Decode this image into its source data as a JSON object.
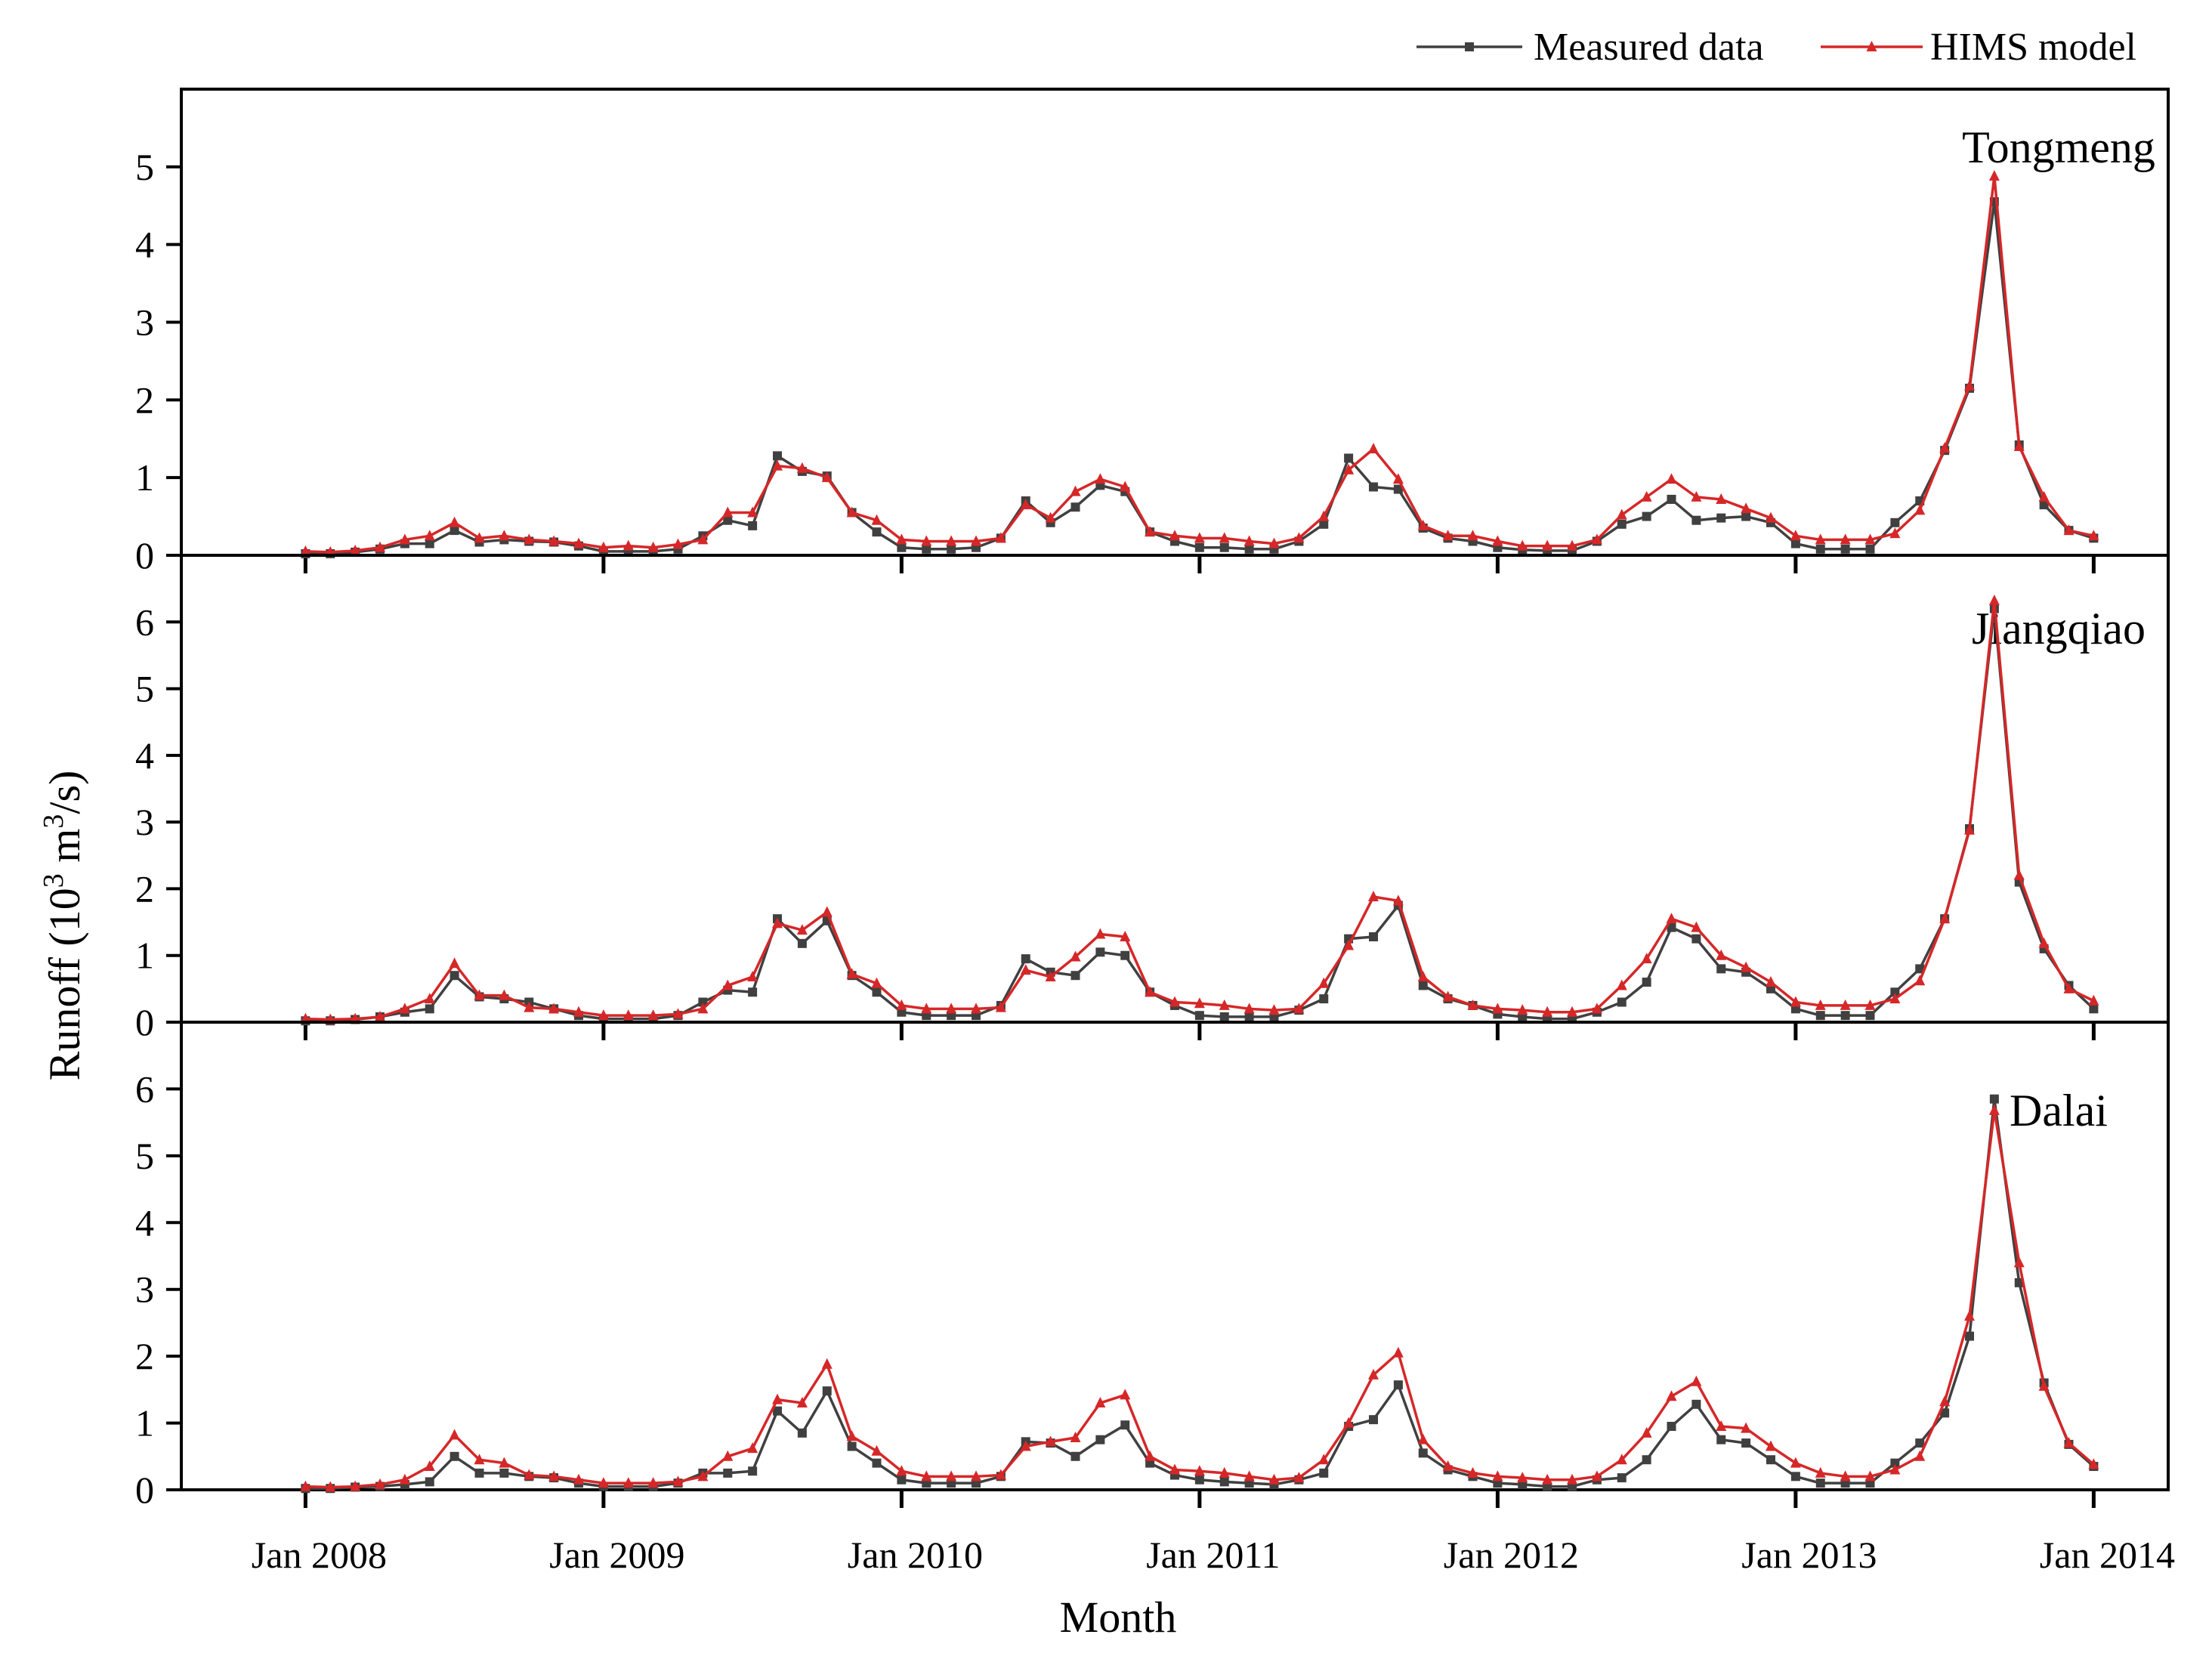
{
  "chart_data": {
    "type": "line",
    "title": "",
    "xlabel": "Month",
    "ylabel": {
      "prefix": "Runoff (10",
      "sup1": "3",
      "mid": " m",
      "sup2": "3",
      "suffix": "/s)"
    },
    "x_ticks": [
      "Jan 2008",
      "Jan 2009",
      "Jan 2010",
      "Jan 2011",
      "Jan 2012",
      "Jan 2013",
      "Jan 2014"
    ],
    "x_range": [
      "2007-08",
      "2014-04"
    ],
    "legend": {
      "placement": "top-right",
      "entries": [
        {
          "name": "Measured data",
          "color": "#404040",
          "marker": "square"
        },
        {
          "name": "HIMS model",
          "color": "#d62728",
          "marker": "triangle"
        }
      ]
    },
    "panels": [
      {
        "station": "Tongmeng",
        "ylim": [
          0,
          6
        ],
        "yticks": [
          0,
          1,
          2,
          3,
          4,
          5
        ],
        "series": [
          {
            "name": "Measured data",
            "color": "#404040",
            "values": [
              0.02,
              0.02,
              0.04,
              0.08,
              0.15,
              0.15,
              0.32,
              0.17,
              0.2,
              0.18,
              0.17,
              0.12,
              0.05,
              0.05,
              0.05,
              0.08,
              0.25,
              0.45,
              0.38,
              1.28,
              1.08,
              1.02,
              0.55,
              0.3,
              0.1,
              0.08,
              0.08,
              0.1,
              0.22,
              0.7,
              0.42,
              0.62,
              0.9,
              0.82,
              0.3,
              0.18,
              0.1,
              0.1,
              0.08,
              0.08,
              0.18,
              0.4,
              1.25,
              0.88,
              0.85,
              0.35,
              0.22,
              0.18,
              0.1,
              0.07,
              0.06,
              0.06,
              0.18,
              0.4,
              0.5,
              0.72,
              0.45,
              0.48,
              0.5,
              0.42,
              0.15,
              0.08,
              0.08,
              0.08,
              0.42,
              0.7,
              1.35,
              2.15,
              4.55,
              1.42,
              0.65,
              0.32,
              0.22
            ]
          },
          {
            "name": "HIMS model",
            "color": "#d62728",
            "values": [
              0.05,
              0.04,
              0.06,
              0.1,
              0.2,
              0.25,
              0.42,
              0.22,
              0.25,
              0.2,
              0.18,
              0.15,
              0.1,
              0.12,
              0.1,
              0.14,
              0.2,
              0.55,
              0.55,
              1.15,
              1.12,
              1.0,
              0.55,
              0.45,
              0.2,
              0.18,
              0.18,
              0.18,
              0.22,
              0.65,
              0.48,
              0.82,
              0.98,
              0.88,
              0.3,
              0.25,
              0.22,
              0.22,
              0.18,
              0.15,
              0.22,
              0.5,
              1.1,
              1.37,
              0.98,
              0.38,
              0.25,
              0.25,
              0.18,
              0.12,
              0.12,
              0.12,
              0.2,
              0.52,
              0.75,
              0.98,
              0.75,
              0.72,
              0.6,
              0.48,
              0.25,
              0.2,
              0.2,
              0.2,
              0.28,
              0.58,
              1.38,
              2.18,
              4.88,
              1.4,
              0.75,
              0.32,
              0.25
            ]
          }
        ]
      },
      {
        "station": "Jiangqiao",
        "ylim": [
          0,
          7
        ],
        "yticks": [
          0,
          1,
          2,
          3,
          4,
          5,
          6
        ],
        "series": [
          {
            "name": "Measured data",
            "color": "#404040",
            "values": [
              0.02,
              0.02,
              0.04,
              0.08,
              0.15,
              0.2,
              0.7,
              0.38,
              0.35,
              0.3,
              0.2,
              0.1,
              0.05,
              0.05,
              0.05,
              0.1,
              0.3,
              0.48,
              0.45,
              1.55,
              1.18,
              1.52,
              0.7,
              0.45,
              0.15,
              0.1,
              0.1,
              0.1,
              0.25,
              0.95,
              0.75,
              0.7,
              1.05,
              1.0,
              0.45,
              0.25,
              0.1,
              0.08,
              0.08,
              0.08,
              0.18,
              0.35,
              1.25,
              1.28,
              1.75,
              0.55,
              0.35,
              0.25,
              0.12,
              0.08,
              0.05,
              0.05,
              0.15,
              0.3,
              0.6,
              1.42,
              1.25,
              0.8,
              0.75,
              0.5,
              0.2,
              0.1,
              0.1,
              0.1,
              0.45,
              0.8,
              1.55,
              2.9,
              6.2,
              2.1,
              1.1,
              0.55,
              0.2
            ]
          },
          {
            "name": "HIMS model",
            "color": "#d62728",
            "values": [
              0.05,
              0.04,
              0.05,
              0.08,
              0.2,
              0.35,
              0.88,
              0.4,
              0.4,
              0.22,
              0.2,
              0.15,
              0.1,
              0.1,
              0.1,
              0.12,
              0.2,
              0.55,
              0.68,
              1.48,
              1.38,
              1.65,
              0.72,
              0.58,
              0.25,
              0.2,
              0.2,
              0.2,
              0.22,
              0.78,
              0.68,
              0.98,
              1.32,
              1.28,
              0.45,
              0.3,
              0.28,
              0.25,
              0.2,
              0.18,
              0.2,
              0.58,
              1.15,
              1.88,
              1.82,
              0.68,
              0.38,
              0.25,
              0.2,
              0.18,
              0.15,
              0.15,
              0.2,
              0.55,
              0.95,
              1.55,
              1.42,
              1.0,
              0.82,
              0.6,
              0.3,
              0.25,
              0.25,
              0.25,
              0.35,
              0.62,
              1.55,
              2.88,
              6.32,
              2.2,
              1.18,
              0.5,
              0.32
            ]
          }
        ]
      },
      {
        "station": "Dalai",
        "ylim": [
          0,
          7
        ],
        "yticks": [
          0,
          1,
          2,
          3,
          4,
          5,
          6
        ],
        "series": [
          {
            "name": "Measured data",
            "color": "#404040",
            "values": [
              0.02,
              0.02,
              0.04,
              0.05,
              0.08,
              0.12,
              0.5,
              0.25,
              0.25,
              0.2,
              0.18,
              0.1,
              0.05,
              0.05,
              0.05,
              0.1,
              0.25,
              0.25,
              0.28,
              1.18,
              0.85,
              1.48,
              0.65,
              0.4,
              0.15,
              0.1,
              0.1,
              0.1,
              0.2,
              0.72,
              0.7,
              0.5,
              0.75,
              0.97,
              0.4,
              0.22,
              0.15,
              0.12,
              0.1,
              0.08,
              0.15,
              0.25,
              0.95,
              1.05,
              1.57,
              0.55,
              0.3,
              0.2,
              0.1,
              0.08,
              0.05,
              0.05,
              0.15,
              0.18,
              0.45,
              0.95,
              1.28,
              0.75,
              0.7,
              0.45,
              0.2,
              0.1,
              0.1,
              0.1,
              0.4,
              0.7,
              1.15,
              2.3,
              5.85,
              3.1,
              1.6,
              0.68,
              0.35
            ]
          },
          {
            "name": "HIMS model",
            "color": "#d62728",
            "values": [
              0.05,
              0.04,
              0.05,
              0.08,
              0.15,
              0.35,
              0.82,
              0.45,
              0.4,
              0.22,
              0.2,
              0.15,
              0.1,
              0.1,
              0.1,
              0.12,
              0.2,
              0.5,
              0.62,
              1.35,
              1.3,
              1.88,
              0.8,
              0.58,
              0.28,
              0.2,
              0.2,
              0.2,
              0.22,
              0.65,
              0.72,
              0.78,
              1.3,
              1.42,
              0.5,
              0.3,
              0.28,
              0.25,
              0.2,
              0.15,
              0.18,
              0.45,
              1.0,
              1.72,
              2.05,
              0.75,
              0.35,
              0.25,
              0.2,
              0.18,
              0.15,
              0.15,
              0.2,
              0.45,
              0.85,
              1.4,
              1.62,
              0.95,
              0.92,
              0.65,
              0.4,
              0.25,
              0.2,
              0.2,
              0.3,
              0.5,
              1.32,
              2.6,
              5.68,
              3.4,
              1.55,
              0.7,
              0.38
            ]
          }
        ]
      }
    ]
  }
}
